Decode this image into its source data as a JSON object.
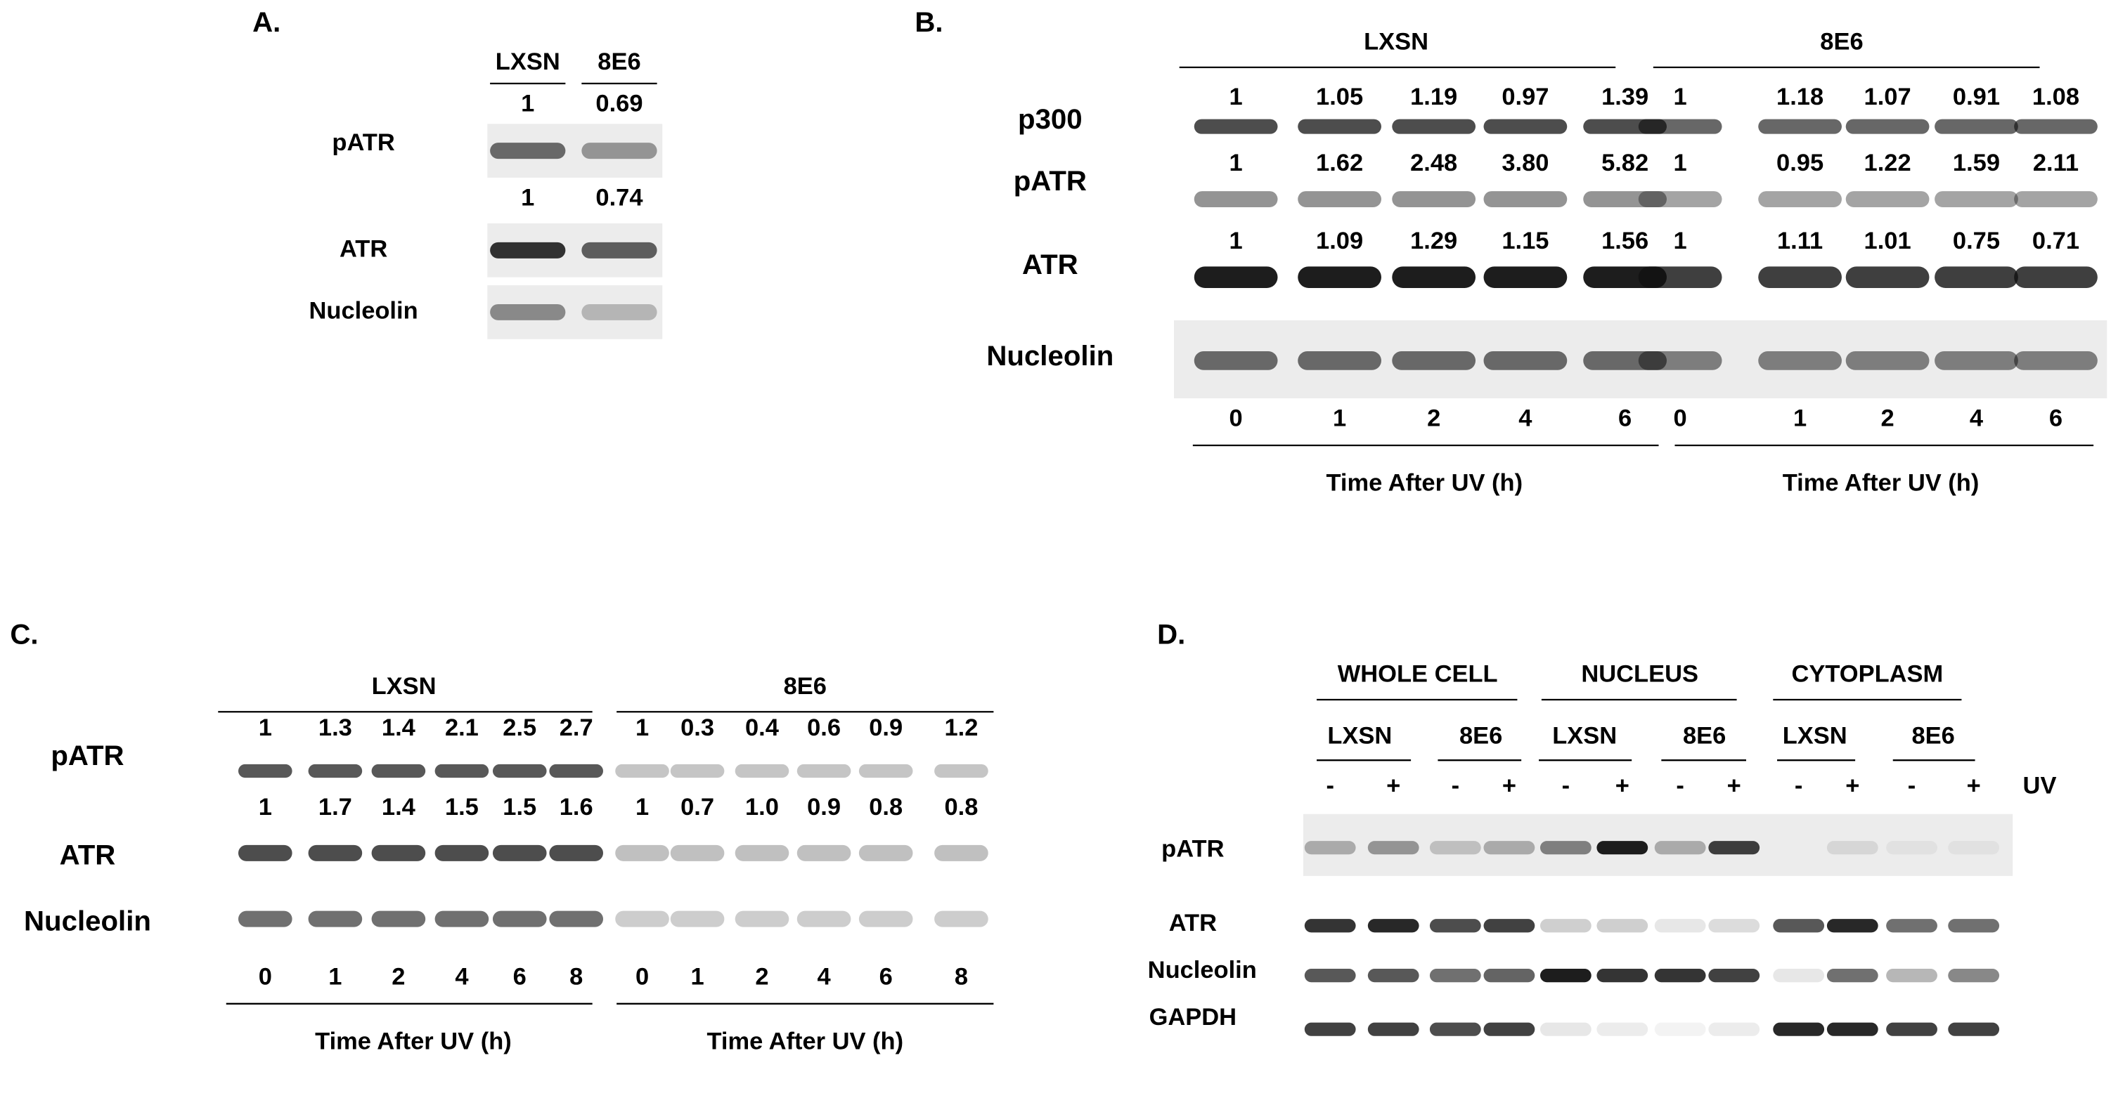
{
  "panel_a": {
    "label": "A.",
    "columns": [
      "LXSN",
      "8E6"
    ],
    "rows": [
      {
        "name": "pATR",
        "color": "#4472c4",
        "values": [
          "1",
          "0.69"
        ]
      },
      {
        "name": "ATR",
        "color": "#000000",
        "values": [
          "1",
          "0.74"
        ]
      },
      {
        "name": "Nucleolin"
      }
    ]
  },
  "panel_b": {
    "label": "B.",
    "groups": [
      {
        "name": "LXSN",
        "times": [
          "0",
          "1",
          "2",
          "4",
          "6"
        ],
        "x_label": "Time After UV (h)"
      },
      {
        "name": "8E6",
        "times": [
          "0",
          "1",
          "2",
          "4",
          "6"
        ],
        "x_label": "Time After UV (h)"
      }
    ],
    "rows": [
      {
        "name": "p300",
        "color": "#c55a11",
        "values": [
          [
            "1",
            "1.05",
            "1.19",
            "0.97",
            "1.39"
          ],
          [
            "1",
            "1.18",
            "1.07",
            "0.91",
            "1.08"
          ]
        ]
      },
      {
        "name": "pATR",
        "color": "#4472c4",
        "values": [
          [
            "1",
            "1.62",
            "2.48",
            "3.80",
            "5.82"
          ],
          [
            "1",
            "0.95",
            "1.22",
            "1.59",
            "2.11"
          ]
        ]
      },
      {
        "name": "ATR",
        "color": "#000000",
        "values": [
          [
            "1",
            "1.09",
            "1.29",
            "1.15",
            "1.56"
          ],
          [
            "1",
            "1.11",
            "1.01",
            "0.75",
            "0.71"
          ]
        ]
      },
      {
        "name": "Nucleolin"
      }
    ]
  },
  "panel_c": {
    "label": "C.",
    "groups": [
      {
        "name": "LXSN",
        "times": [
          "0",
          "1",
          "2",
          "4",
          "6",
          "8"
        ],
        "x_label": "Time After UV (h)"
      },
      {
        "name": "8E6",
        "times": [
          "0",
          "1",
          "2",
          "4",
          "6",
          "8"
        ],
        "x_label": "Time After UV (h)"
      }
    ],
    "rows": [
      {
        "name": "pATR",
        "color": "#4472c4",
        "values": [
          [
            "1",
            "1.3",
            "1.4",
            "2.1",
            "2.5",
            "2.7"
          ],
          [
            "1",
            "0.3",
            "0.4",
            "0.6",
            "0.9",
            "1.2"
          ]
        ]
      },
      {
        "name": "ATR",
        "color": "#000000",
        "values": [
          [
            "1",
            "1.7",
            "1.4",
            "1.5",
            "1.5",
            "1.6"
          ],
          [
            "1",
            "0.7",
            "1.0",
            "0.9",
            "0.8",
            "0.8"
          ]
        ]
      },
      {
        "name": "Nucleolin"
      }
    ]
  },
  "panel_d": {
    "label": "D.",
    "fractions": [
      {
        "name": "WHOLE CELL",
        "cells": [
          {
            "name": "LXSN",
            "uv": [
              "-",
              "+"
            ]
          },
          {
            "name": "8E6",
            "uv": [
              "-",
              "+"
            ]
          }
        ]
      },
      {
        "name": "NUCLEUS",
        "cells": [
          {
            "name": "LXSN",
            "uv": [
              "-",
              "+"
            ]
          },
          {
            "name": "8E6",
            "uv": [
              "-",
              "+"
            ]
          }
        ]
      },
      {
        "name": "CYTOPLASM",
        "cells": [
          {
            "name": "LXSN",
            "uv": [
              "-",
              "+"
            ]
          },
          {
            "name": "8E6",
            "uv": [
              "-",
              "+"
            ]
          }
        ]
      }
    ],
    "uv_label": "UV",
    "rows": [
      "pATR",
      "ATR",
      "Nucleolin",
      "GAPDH"
    ]
  }
}
